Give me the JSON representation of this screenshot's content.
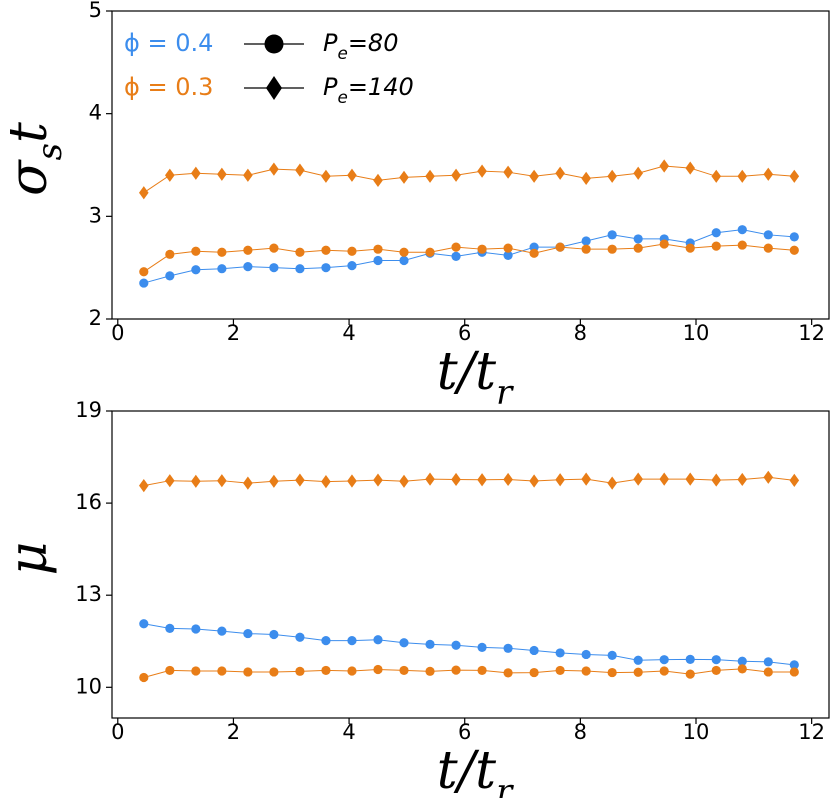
{
  "chart_data": [
    {
      "type": "line",
      "xlabel": "t/t_r",
      "ylabel": "σ_st",
      "xlim": [
        -0.1,
        12.3
      ],
      "ylim": [
        2,
        5
      ],
      "xticks": [
        0,
        2,
        4,
        6,
        8,
        10,
        12
      ],
      "yticks": [
        2,
        3,
        4,
        5
      ],
      "grid": false,
      "legend": {
        "placement": "top-left",
        "phi_entries": [
          {
            "label": "ϕ = 0.4",
            "color": "#3c8ded"
          },
          {
            "label": "ϕ = 0.3",
            "color": "#e87d17"
          }
        ],
        "pe_entries": [
          {
            "label": "P_e = 80",
            "marker": "circle"
          },
          {
            "label": "P_e = 140",
            "marker": "diamond"
          }
        ]
      },
      "x": [
        0.45,
        0.9,
        1.35,
        1.8,
        2.25,
        2.7,
        3.15,
        3.6,
        4.05,
        4.5,
        4.95,
        5.4,
        5.85,
        6.3,
        6.75,
        7.2,
        7.65,
        8.1,
        8.55,
        9.0,
        9.45,
        9.9,
        10.35,
        10.8,
        11.25,
        11.7
      ],
      "series": [
        {
          "phi": "0.4",
          "pe": "80",
          "color": "#3c8ded",
          "marker": "circle",
          "values": [
            2.35,
            2.42,
            2.48,
            2.49,
            2.51,
            2.5,
            2.49,
            2.5,
            2.52,
            2.57,
            2.57,
            2.64,
            2.61,
            2.65,
            2.62,
            2.7,
            2.7,
            2.76,
            2.82,
            2.78,
            2.78,
            2.74,
            2.84,
            2.87,
            2.82,
            2.8
          ]
        },
        {
          "phi": "0.3",
          "pe": "80",
          "color": "#e87d17",
          "marker": "circle",
          "values": [
            2.46,
            2.63,
            2.66,
            2.65,
            2.67,
            2.69,
            2.65,
            2.67,
            2.66,
            2.68,
            2.65,
            2.65,
            2.7,
            2.68,
            2.69,
            2.64,
            2.7,
            2.68,
            2.68,
            2.69,
            2.73,
            2.69,
            2.71,
            2.72,
            2.69,
            2.67
          ]
        },
        {
          "phi": "0.3",
          "pe": "140",
          "color": "#e87d17",
          "marker": "diamond",
          "values": [
            3.23,
            3.4,
            3.42,
            3.41,
            3.4,
            3.46,
            3.45,
            3.39,
            3.4,
            3.35,
            3.38,
            3.39,
            3.4,
            3.44,
            3.43,
            3.39,
            3.42,
            3.37,
            3.39,
            3.42,
            3.49,
            3.47,
            3.39,
            3.39,
            3.41,
            3.39
          ]
        }
      ]
    },
    {
      "type": "line",
      "xlabel": "t/t_r",
      "ylabel": "μ",
      "xlim": [
        -0.1,
        12.3
      ],
      "ylim": [
        9,
        19
      ],
      "xticks": [
        0,
        2,
        4,
        6,
        8,
        10,
        12
      ],
      "yticks": [
        10,
        13,
        16,
        19
      ],
      "grid": false,
      "x": [
        0.45,
        0.9,
        1.35,
        1.8,
        2.25,
        2.7,
        3.15,
        3.6,
        4.05,
        4.5,
        4.95,
        5.4,
        5.85,
        6.3,
        6.75,
        7.2,
        7.65,
        8.1,
        8.55,
        9.0,
        9.45,
        9.9,
        10.35,
        10.8,
        11.25,
        11.7
      ],
      "series": [
        {
          "phi": "0.4",
          "pe": "80",
          "color": "#3c8ded",
          "marker": "circle",
          "values": [
            12.07,
            11.92,
            11.9,
            11.83,
            11.75,
            11.72,
            11.63,
            11.52,
            11.52,
            11.55,
            11.45,
            11.4,
            11.37,
            11.3,
            11.27,
            11.2,
            11.12,
            11.07,
            11.04,
            10.88,
            10.9,
            10.91,
            10.9,
            10.85,
            10.83,
            10.73
          ]
        },
        {
          "phi": "0.3",
          "pe": "80",
          "color": "#e87d17",
          "marker": "circle",
          "values": [
            10.32,
            10.55,
            10.53,
            10.53,
            10.5,
            10.5,
            10.52,
            10.55,
            10.53,
            10.58,
            10.55,
            10.52,
            10.56,
            10.55,
            10.47,
            10.48,
            10.55,
            10.53,
            10.48,
            10.49,
            10.53,
            10.43,
            10.55,
            10.6,
            10.5,
            10.5
          ]
        },
        {
          "phi": "0.3",
          "pe": "140",
          "color": "#e87d17",
          "marker": "diamond",
          "values": [
            16.57,
            16.73,
            16.71,
            16.73,
            16.65,
            16.71,
            16.75,
            16.7,
            16.72,
            16.75,
            16.71,
            16.78,
            16.77,
            16.76,
            16.77,
            16.72,
            16.76,
            16.78,
            16.65,
            16.78,
            16.78,
            16.78,
            16.75,
            16.77,
            16.84,
            16.74
          ]
        }
      ]
    }
  ]
}
